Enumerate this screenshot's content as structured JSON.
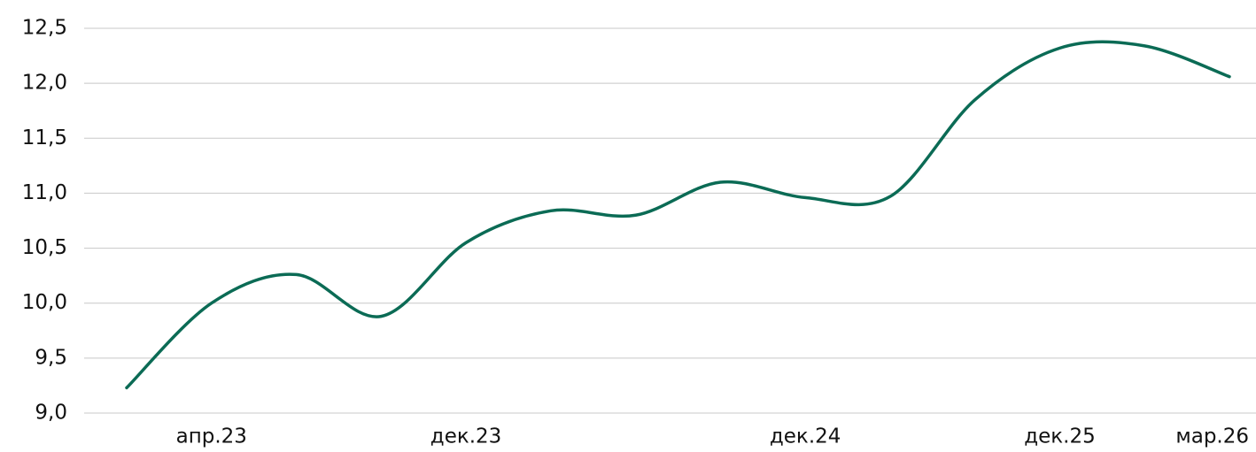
{
  "chart_data": {
    "type": "line",
    "categories": [
      null,
      "апр.23",
      null,
      null,
      "дек.23",
      null,
      null,
      null,
      "дек.24",
      null,
      null,
      "дек.25",
      null,
      "мар.26"
    ],
    "series": [
      {
        "color": "#0b6b55",
        "values": [
          9.23,
          10.0,
          10.26,
          9.88,
          10.55,
          10.84,
          10.8,
          11.1,
          10.96,
          10.97,
          11.85,
          12.32,
          12.34,
          12.06
        ]
      }
    ],
    "ylim": [
      9.0,
      12.5
    ],
    "yticks": [
      {
        "value": 9.0,
        "label": "9,0"
      },
      {
        "value": 9.5,
        "label": "9,5"
      },
      {
        "value": 10.0,
        "label": "10,0"
      },
      {
        "value": 10.5,
        "label": "10,5"
      },
      {
        "value": 11.0,
        "label": "11,0"
      },
      {
        "value": 11.5,
        "label": "11,5"
      },
      {
        "value": 12.0,
        "label": "12,0"
      },
      {
        "value": 12.5,
        "label": "12,5"
      }
    ],
    "grid": true
  }
}
